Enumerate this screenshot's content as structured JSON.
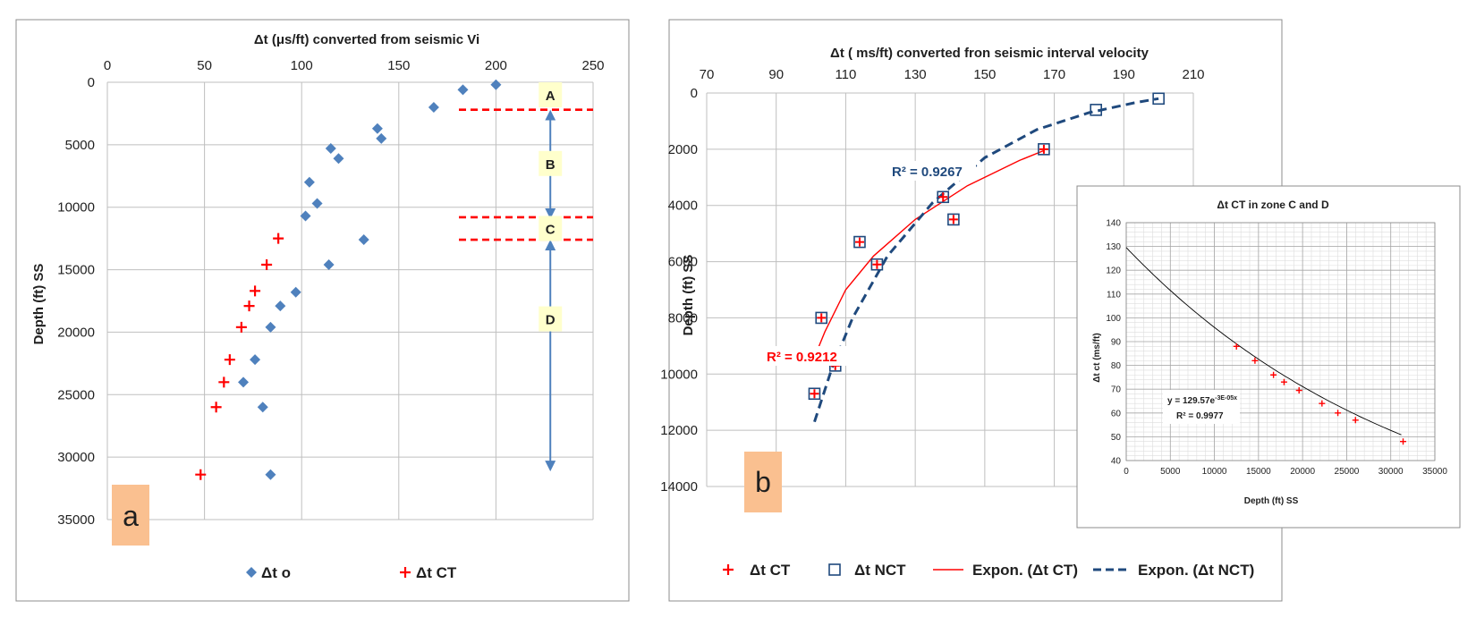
{
  "colors": {
    "blue_marker": "#4F81BD",
    "red_marker": "#FF0000",
    "nct_marker": "#1F497D",
    "nct_curve": "#1F497D",
    "zone_bg": "#FFFFCC",
    "panel_label_bg": "#FAC090",
    "zone_arrow": "#4F81BD",
    "zone_line": "#FF0000",
    "grid": "#BFBFBF"
  },
  "chart_data": [
    {
      "type": "scatter",
      "panel_label": "a",
      "title": "Δt (μs/ft) converted from seismic Vi",
      "xlabel": "",
      "ylabel": "Depth (ft) SS",
      "xlim": [
        0,
        250
      ],
      "ylim": [
        0,
        35000
      ],
      "y_reversed": true,
      "x_axis_position": "top",
      "x_ticks": [
        "0",
        "50",
        "100",
        "150",
        "200",
        "250"
      ],
      "y_ticks": [
        "0",
        "5000",
        "10000",
        "15000",
        "20000",
        "25000",
        "30000",
        "35000"
      ],
      "grid": true,
      "legend_position": "bottom",
      "series": [
        {
          "name": "Δt o",
          "marker": "diamond",
          "points": [
            {
              "x": 200,
              "y": 200
            },
            {
              "x": 183,
              "y": 600
            },
            {
              "x": 168,
              "y": 2000
            },
            {
              "x": 139,
              "y": 3700
            },
            {
              "x": 141,
              "y": 4500
            },
            {
              "x": 115,
              "y": 5300
            },
            {
              "x": 119,
              "y": 6100
            },
            {
              "x": 104,
              "y": 8000
            },
            {
              "x": 108,
              "y": 9700
            },
            {
              "x": 102,
              "y": 10700
            },
            {
              "x": 132,
              "y": 12600
            },
            {
              "x": 114,
              "y": 14600
            },
            {
              "x": 97,
              "y": 16800
            },
            {
              "x": 89,
              "y": 17900
            },
            {
              "x": 84,
              "y": 19600
            },
            {
              "x": 76,
              "y": 22200
            },
            {
              "x": 70,
              "y": 24000
            },
            {
              "x": 80,
              "y": 26000
            },
            {
              "x": 84,
              "y": 31400
            }
          ]
        },
        {
          "name": "Δt CT",
          "marker": "plus",
          "points": [
            {
              "x": 88,
              "y": 12500
            },
            {
              "x": 82,
              "y": 14600
            },
            {
              "x": 76,
              "y": 16700
            },
            {
              "x": 73,
              "y": 17900
            },
            {
              "x": 69,
              "y": 19600
            },
            {
              "x": 63,
              "y": 22200
            },
            {
              "x": 60,
              "y": 24000
            },
            {
              "x": 56,
              "y": 26000
            },
            {
              "x": 48,
              "y": 31400
            }
          ]
        }
      ],
      "zones": [
        {
          "label": "A",
          "from": 0,
          "to": 2200
        },
        {
          "label": "B",
          "from": 2200,
          "to": 10800
        },
        {
          "label": "C",
          "from": 10800,
          "to": 12600
        },
        {
          "label": "D",
          "from": 12600,
          "to": 31000
        }
      ],
      "zone_boundaries": [
        2200,
        10800,
        12600
      ],
      "zone_x": 228
    },
    {
      "type": "scatter",
      "panel_label": "b",
      "title": "Δt ( ms/ft)  converted fron seismic interval velocity",
      "xlabel": "",
      "ylabel": "Depth (ft) SS",
      "xlim": [
        70,
        210
      ],
      "ylim": [
        0,
        14000
      ],
      "y_reversed": true,
      "x_axis_position": "top",
      "x_ticks": [
        "70",
        "90",
        "110",
        "130",
        "150",
        "170",
        "190",
        "210"
      ],
      "y_ticks": [
        "0",
        "2000",
        "4000",
        "6000",
        "8000",
        "10000",
        "12000",
        "14000"
      ],
      "grid": true,
      "legend_position": "bottom",
      "series": [
        {
          "name": "Δt CT",
          "marker": "plus",
          "points": [
            {
              "x": 167,
              "y": 2000
            },
            {
              "x": 138,
              "y": 3700
            },
            {
              "x": 141,
              "y": 4500
            },
            {
              "x": 114,
              "y": 5300
            },
            {
              "x": 119,
              "y": 6100
            },
            {
              "x": 103,
              "y": 8000
            },
            {
              "x": 107,
              "y": 9700
            },
            {
              "x": 101,
              "y": 10700
            }
          ]
        },
        {
          "name": "Δt NCT",
          "marker": "square",
          "points": [
            {
              "x": 200,
              "y": 200
            },
            {
              "x": 182,
              "y": 600
            },
            {
              "x": 167,
              "y": 2000
            },
            {
              "x": 138,
              "y": 3700
            },
            {
              "x": 141,
              "y": 4500
            },
            {
              "x": 114,
              "y": 5300
            },
            {
              "x": 119,
              "y": 6100
            },
            {
              "x": 103,
              "y": 8000
            },
            {
              "x": 107,
              "y": 9700
            },
            {
              "x": 101,
              "y": 10700
            }
          ]
        }
      ],
      "trendlines": [
        {
          "name": "Expon. (Δt CT)",
          "style": "solid",
          "r2_label": "R² = 0.9212",
          "points": [
            {
              "x": 101,
              "y": 9400
            },
            {
              "x": 104,
              "y": 8500
            },
            {
              "x": 110,
              "y": 7000
            },
            {
              "x": 118,
              "y": 5800
            },
            {
              "x": 130,
              "y": 4500
            },
            {
              "x": 145,
              "y": 3300
            },
            {
              "x": 160,
              "y": 2400
            },
            {
              "x": 167,
              "y": 2050
            }
          ]
        },
        {
          "name": "Expon. (Δt NCT)",
          "style": "dashed",
          "r2_label": "R² = 0.9267",
          "points": [
            {
              "x": 101,
              "y": 11700
            },
            {
              "x": 106,
              "y": 9800
            },
            {
              "x": 112,
              "y": 8000
            },
            {
              "x": 122,
              "y": 5800
            },
            {
              "x": 135,
              "y": 3900
            },
            {
              "x": 150,
              "y": 2300
            },
            {
              "x": 165,
              "y": 1300
            },
            {
              "x": 180,
              "y": 700
            },
            {
              "x": 193,
              "y": 350
            },
            {
              "x": 200,
              "y": 200
            }
          ]
        }
      ]
    },
    {
      "type": "scatter",
      "panel_label": "",
      "title": "Δt  CT  in zone C and D",
      "xlabel": "Depth (ft) SS",
      "ylabel": "Δt ct (ms/ft)",
      "xlim": [
        0,
        35000
      ],
      "ylim": [
        40,
        140
      ],
      "x_ticks": [
        "0",
        "5000",
        "10000",
        "15000",
        "20000",
        "25000",
        "30000",
        "35000"
      ],
      "y_ticks": [
        "40",
        "50",
        "60",
        "70",
        "80",
        "90",
        "100",
        "110",
        "120",
        "130",
        "140"
      ],
      "grid": true,
      "series": [
        {
          "name": "Δt CT",
          "marker": "plus",
          "points": [
            {
              "x": 12500,
              "y": 88
            },
            {
              "x": 14600,
              "y": 82
            },
            {
              "x": 16700,
              "y": 76
            },
            {
              "x": 17900,
              "y": 73
            },
            {
              "x": 19600,
              "y": 69.5
            },
            {
              "x": 22200,
              "y": 64
            },
            {
              "x": 24000,
              "y": 60
            },
            {
              "x": 26000,
              "y": 57
            },
            {
              "x": 31400,
              "y": 48
            }
          ]
        }
      ],
      "trendline": {
        "type": "exponential",
        "a": 129.57,
        "b": -3e-05,
        "equation_base": "y = 129.57e",
        "equation_exp": "-3E-05x",
        "r2_label": "R² = 0.9977"
      }
    }
  ]
}
